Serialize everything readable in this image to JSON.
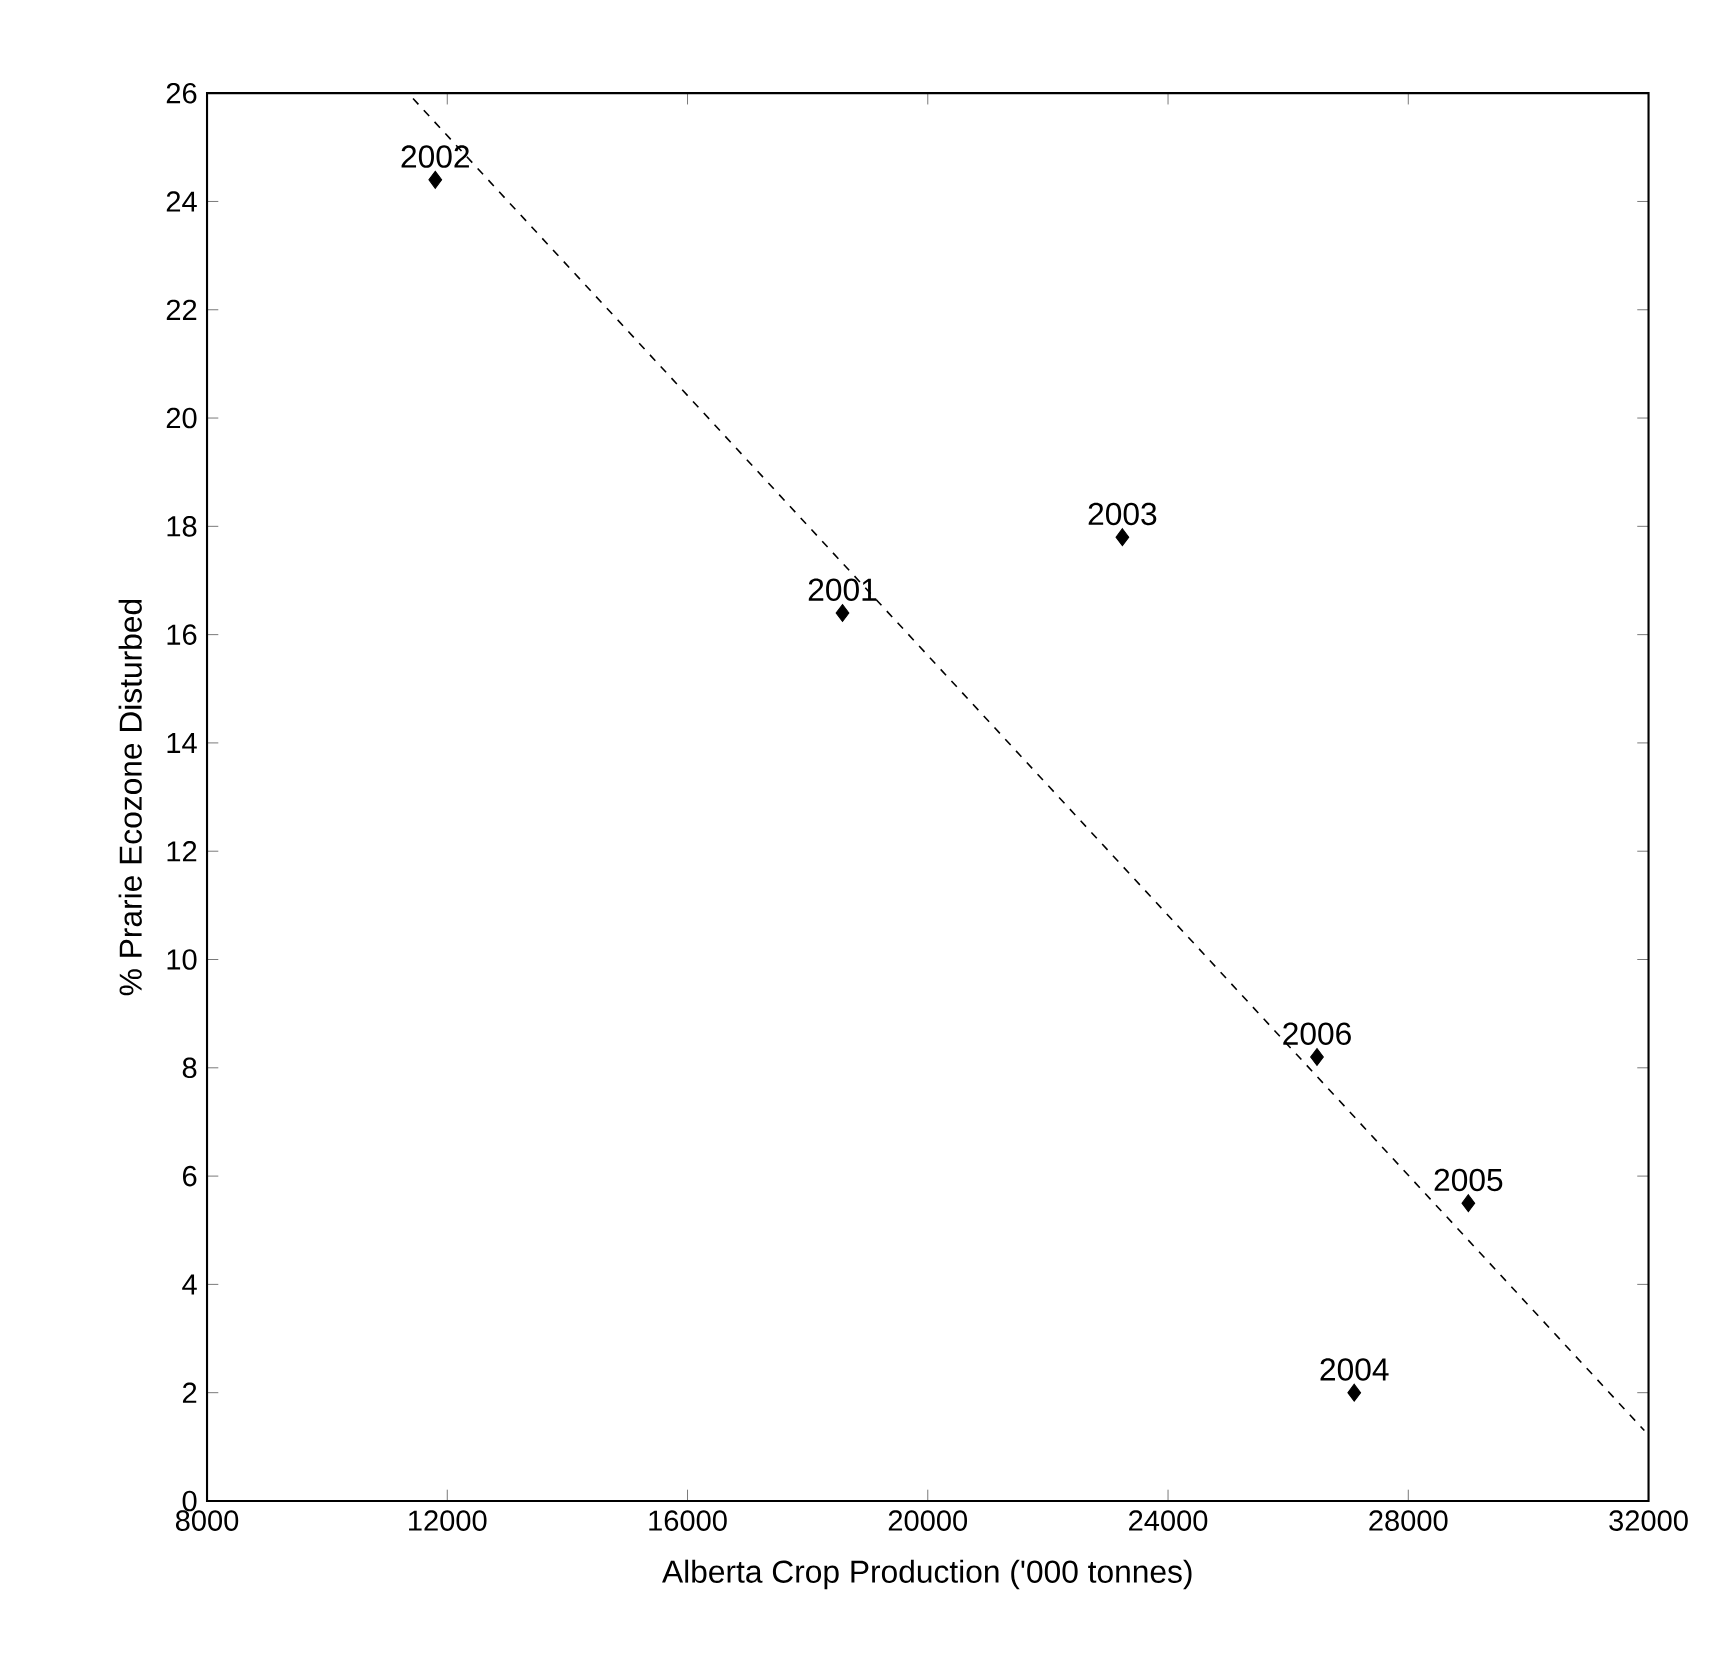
{
  "chart_data": {
    "type": "scatter",
    "xlabel": "Alberta Crop Production ('000 tonnes)",
    "ylabel": "% Prarie Ecozone Disturbed",
    "xlim": [
      8000,
      32000
    ],
    "xticks": [
      8000,
      12000,
      16000,
      20000,
      24000,
      28000,
      32000
    ],
    "ylim": [
      0,
      26
    ],
    "yticks": [
      0,
      2,
      4,
      6,
      8,
      10,
      12,
      14,
      16,
      18,
      20,
      22,
      24,
      26
    ],
    "grid": false,
    "marker": "diamond",
    "series": [
      {
        "color": "#000000",
        "x": [
          18580,
          11800,
          23240,
          27100,
          29000,
          26480
        ],
        "values": [
          16.4,
          24.4,
          17.8,
          2.0,
          5.5,
          8.2
        ]
      },
      {
        "type": "line",
        "line_style": "dashed",
        "marker": "none",
        "color": "#000000",
        "x": [
          11430,
          31930
        ],
        "values": [
          25.9,
          1.3
        ]
      }
    ],
    "annotations": [
      {
        "text": "2001",
        "x": 18580,
        "y": 16.4
      },
      {
        "text": "2002",
        "x": 11800,
        "y": 24.4
      },
      {
        "text": "2003",
        "x": 23240,
        "y": 17.8
      },
      {
        "text": "2004",
        "x": 27100,
        "y": 2.0
      },
      {
        "text": "2005",
        "x": 29000,
        "y": 5.5
      },
      {
        "text": "2006",
        "x": 26480,
        "y": 8.2
      }
    ]
  }
}
